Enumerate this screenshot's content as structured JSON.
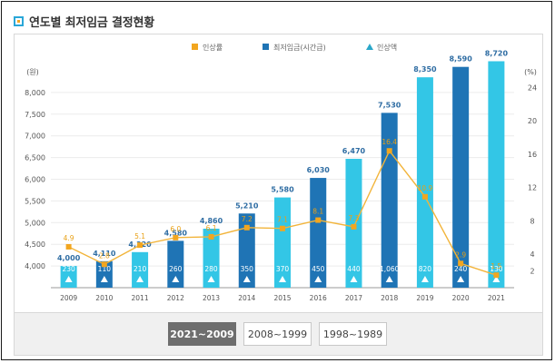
{
  "page_title": "연도별 최저임금 결정현황",
  "chart_data": {
    "type": "bar+line",
    "categories": [
      "2009",
      "2010",
      "2011",
      "2012",
      "2013",
      "2014",
      "2015",
      "2016",
      "2017",
      "2018",
      "2019",
      "2020",
      "2021"
    ],
    "legend": [
      {
        "name": "인상률",
        "marker": "square",
        "color": "#f2a61f"
      },
      {
        "name": "최저임금(시간급)",
        "marker": "bar",
        "color": "#1f74b5"
      },
      {
        "name": "인상액",
        "marker": "triangle",
        "color": "#2aa7c9"
      }
    ],
    "min_wage": {
      "name": "최저임금(시간급)",
      "values": [
        4000,
        4110,
        4320,
        4580,
        4860,
        5210,
        5580,
        6030,
        6470,
        7530,
        8350,
        8590,
        8720
      ],
      "labels": [
        "4,000",
        "4,110",
        "4,320",
        "4,580",
        "4,860",
        "5,210",
        "5,580",
        "6,030",
        "6,470",
        "7,530",
        "8,350",
        "8,590",
        "8,720"
      ],
      "colors": [
        "light",
        "dark",
        "light",
        "dark",
        "light",
        "dark",
        "light",
        "dark",
        "light",
        "dark",
        "light",
        "dark",
        "light"
      ]
    },
    "increase_rate": {
      "name": "인상률",
      "values": [
        4.9,
        2.8,
        5.1,
        6.0,
        6.1,
        7.2,
        7.1,
        8.1,
        7.3,
        16.4,
        10.9,
        2.9,
        1.5
      ],
      "labels": [
        "4.9",
        "2.8",
        "5.1",
        "6.0",
        "6.1",
        "7.2",
        "7.1",
        "8.1",
        "7.3",
        "16.4",
        "10.9",
        "2.9",
        "1.5"
      ]
    },
    "increase_amount": {
      "name": "인상액",
      "values": [
        230,
        110,
        210,
        260,
        280,
        350,
        370,
        450,
        440,
        1060,
        820,
        240,
        130
      ],
      "labels": [
        "230",
        "110",
        "210",
        "260",
        "280",
        "350",
        "370",
        "450",
        "440",
        "1,060",
        "820",
        "240",
        "130"
      ]
    },
    "y_left": {
      "unit": "(원)",
      "range": [
        3500,
        8500
      ],
      "ticks": [
        4000,
        4500,
        5000,
        5500,
        6000,
        6500,
        7000,
        7500,
        8000
      ],
      "tick_labels": [
        "4,000",
        "4,500",
        "5,000",
        "5,500",
        "6,000",
        "6,500",
        "7,000",
        "7,500",
        "8,000"
      ]
    },
    "y_right": {
      "unit": "(%)",
      "range": [
        0,
        26
      ],
      "ticks": [
        2,
        4,
        8,
        12,
        16,
        20,
        24
      ],
      "tick_labels": [
        "2",
        "4",
        "8",
        "12",
        "16",
        "20",
        "24"
      ]
    },
    "colors": {
      "bar_light": "#33c6e6",
      "bar_dark": "#1f74b5",
      "line": "#f2b43a",
      "marker": "#f2a61f",
      "triangle": "#ffffff",
      "value_label": "#2f6da3"
    }
  },
  "tabs": [
    {
      "label": "2021~2009",
      "active": true
    },
    {
      "label": "2008~1999",
      "active": false
    },
    {
      "label": "1998~1989",
      "active": false
    }
  ]
}
